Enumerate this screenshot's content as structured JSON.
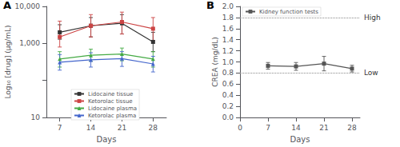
{
  "chart_data": [
    {
      "type": "line",
      "panel_label": "A",
      "xlabel": "Days",
      "ylabel": "Log₁₀ [drug] (µg/mL)",
      "log": "y",
      "x": [
        7,
        14,
        21,
        28
      ],
      "xlim": [
        4,
        31
      ],
      "xticks": [
        7,
        14,
        21,
        28
      ],
      "ylim": [
        10,
        10000
      ],
      "yticks": [
        10,
        {
          "value": 1000,
          "label": "1,000"
        },
        {
          "value": 10000,
          "label": "10,000"
        }
      ],
      "grid": false,
      "legend": "lower center",
      "series": [
        {
          "name": "Lidocaine tissue",
          "color": "#333333",
          "marker": "square",
          "values": [
            2000,
            3000,
            3500,
            1100
          ],
          "err_low": [
            700,
            1500,
            1700,
            500
          ],
          "err_high": [
            1200,
            2000,
            2500,
            900
          ]
        },
        {
          "name": "Ketorolac tissue",
          "color": "#cc4444",
          "marker": "square",
          "values": [
            1500,
            3000,
            3800,
            2500
          ],
          "err_low": [
            700,
            1500,
            2000,
            1300
          ],
          "err_high": [
            2500,
            3000,
            3200,
            2500
          ]
        },
        {
          "name": "Lidocaine plasma",
          "color": "#44aa44",
          "marker": "triangle",
          "values": [
            380,
            480,
            520,
            380
          ],
          "err_low": [
            150,
            150,
            180,
            150
          ],
          "err_high": [
            220,
            220,
            230,
            220
          ]
        },
        {
          "name": "Ketorolac plasma",
          "color": "#4466cc",
          "marker": "triangle",
          "values": [
            310,
            360,
            390,
            280
          ],
          "err_low": [
            120,
            130,
            150,
            110
          ],
          "err_high": [
            190,
            200,
            210,
            170
          ]
        }
      ]
    },
    {
      "type": "line",
      "panel_label": "B",
      "xlabel": "Days",
      "ylabel": "CREA (mg/dL)",
      "x": [
        7,
        14,
        21,
        28
      ],
      "xlim": [
        0,
        30
      ],
      "xticks": [
        0,
        7,
        14,
        21,
        28
      ],
      "ylim": [
        0.0,
        2.0
      ],
      "yticks": [
        {
          "value": 0,
          "label": "0.0"
        },
        0.2,
        0.4,
        0.6,
        0.8,
        {
          "value": 1,
          "label": "1.0"
        },
        1.2,
        1.4,
        1.6,
        1.8,
        {
          "value": 2,
          "label": "2.0"
        }
      ],
      "grid": false,
      "legend": "upper left",
      "hlines": [
        {
          "value": 1.8,
          "label": "High"
        },
        {
          "value": 0.8,
          "label": "Low"
        }
      ],
      "series": [
        {
          "name": "Kidney function tests",
          "color": "#555555",
          "marker": "square",
          "values": [
            0.93,
            0.92,
            0.97,
            0.88
          ],
          "err": [
            0.06,
            0.07,
            0.13,
            0.06
          ]
        }
      ]
    }
  ]
}
